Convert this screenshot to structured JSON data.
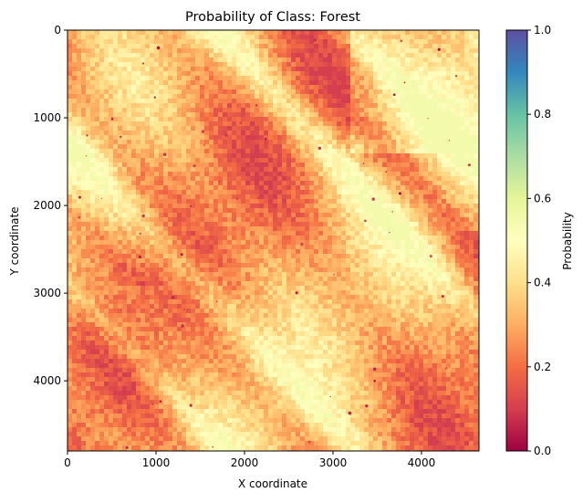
{
  "chart_data": {
    "type": "heatmap",
    "title": "Probability of Class: Forest",
    "xlabel": "X coordinate",
    "ylabel": "Y coordinate",
    "xlim": [
      0,
      4650
    ],
    "ylim": [
      4800,
      0
    ],
    "x_ticks": [
      0,
      1000,
      2000,
      3000,
      4000
    ],
    "y_ticks": [
      0,
      1000,
      2000,
      3000,
      4000
    ],
    "colorbar": {
      "label": "Probability",
      "colormap": "Spectral",
      "range": [
        0.0,
        1.0
      ],
      "ticks": [
        "0.0",
        "0.2",
        "0.4",
        "0.6",
        "0.8",
        "1.0"
      ],
      "stops": [
        {
          "v": 0.0,
          "color": "#9e0142"
        },
        {
          "v": 0.1,
          "color": "#d53e4f"
        },
        {
          "v": 0.2,
          "color": "#f46d43"
        },
        {
          "v": 0.3,
          "color": "#fdae61"
        },
        {
          "v": 0.4,
          "color": "#fee08b"
        },
        {
          "v": 0.5,
          "color": "#ffffbf"
        },
        {
          "v": 0.6,
          "color": "#e6f598"
        },
        {
          "v": 0.7,
          "color": "#abdda4"
        },
        {
          "v": 0.8,
          "color": "#66c2a5"
        },
        {
          "v": 0.9,
          "color": "#3288bd"
        },
        {
          "v": 1.0,
          "color": "#5e4fa2"
        }
      ]
    },
    "grid": false,
    "value_summary": {
      "typical_min": 0.1,
      "typical_max": 0.55,
      "dominant": 0.35
    }
  }
}
